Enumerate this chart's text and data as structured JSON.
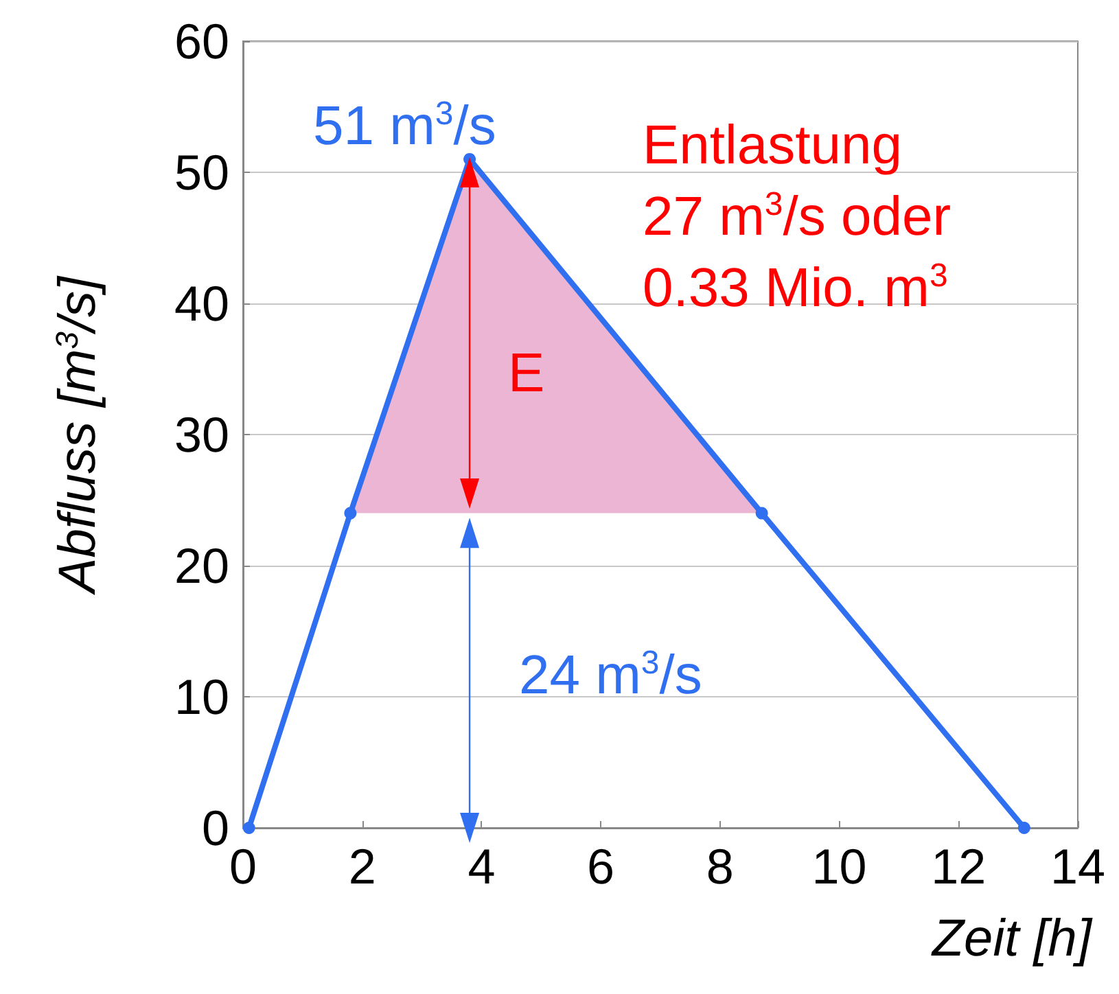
{
  "chart_data": {
    "type": "line",
    "xlabel": "Zeit [h]",
    "ylabel": "Abfluss [m$^{3}$/s]",
    "xlim": [
      0,
      14
    ],
    "xticks": [
      0,
      2,
      4,
      6,
      8,
      10,
      12,
      14
    ],
    "ylim": [
      0,
      60
    ],
    "yticks": [
      0,
      10,
      20,
      30,
      40,
      50,
      60
    ],
    "grid": "y",
    "marker": "circle",
    "line_style": "solid",
    "series": [
      {
        "type": "area",
        "color": "#ebb5d3",
        "marker": "none",
        "x": [
          1.8,
          3.8,
          8.7
        ],
        "values": [
          24,
          51,
          24
        ]
      },
      {
        "color": "#2f6ff0",
        "x": [
          0.1,
          1.8,
          3.8,
          8.7,
          13.1
        ],
        "values": [
          0,
          24,
          51,
          24,
          0
        ]
      },
      {
        "type": "line",
        "color": "#ff0000",
        "marker": "triangle",
        "x": [
          3.8,
          3.8
        ],
        "values": [
          25.5,
          50
        ]
      },
      {
        "type": "line",
        "color": "#2f6ff0",
        "marker": "triangle",
        "x": [
          3.8,
          3.8
        ],
        "values": [
          0,
          22.5
        ]
      }
    ],
    "annotations": [
      "51 m$^{3}$/s",
      "Entlastung\n27 m$^{3}$/s oder\n0.33 Mio. m$^{3}$",
      "E",
      "24 m$^{3}$/s"
    ]
  }
}
